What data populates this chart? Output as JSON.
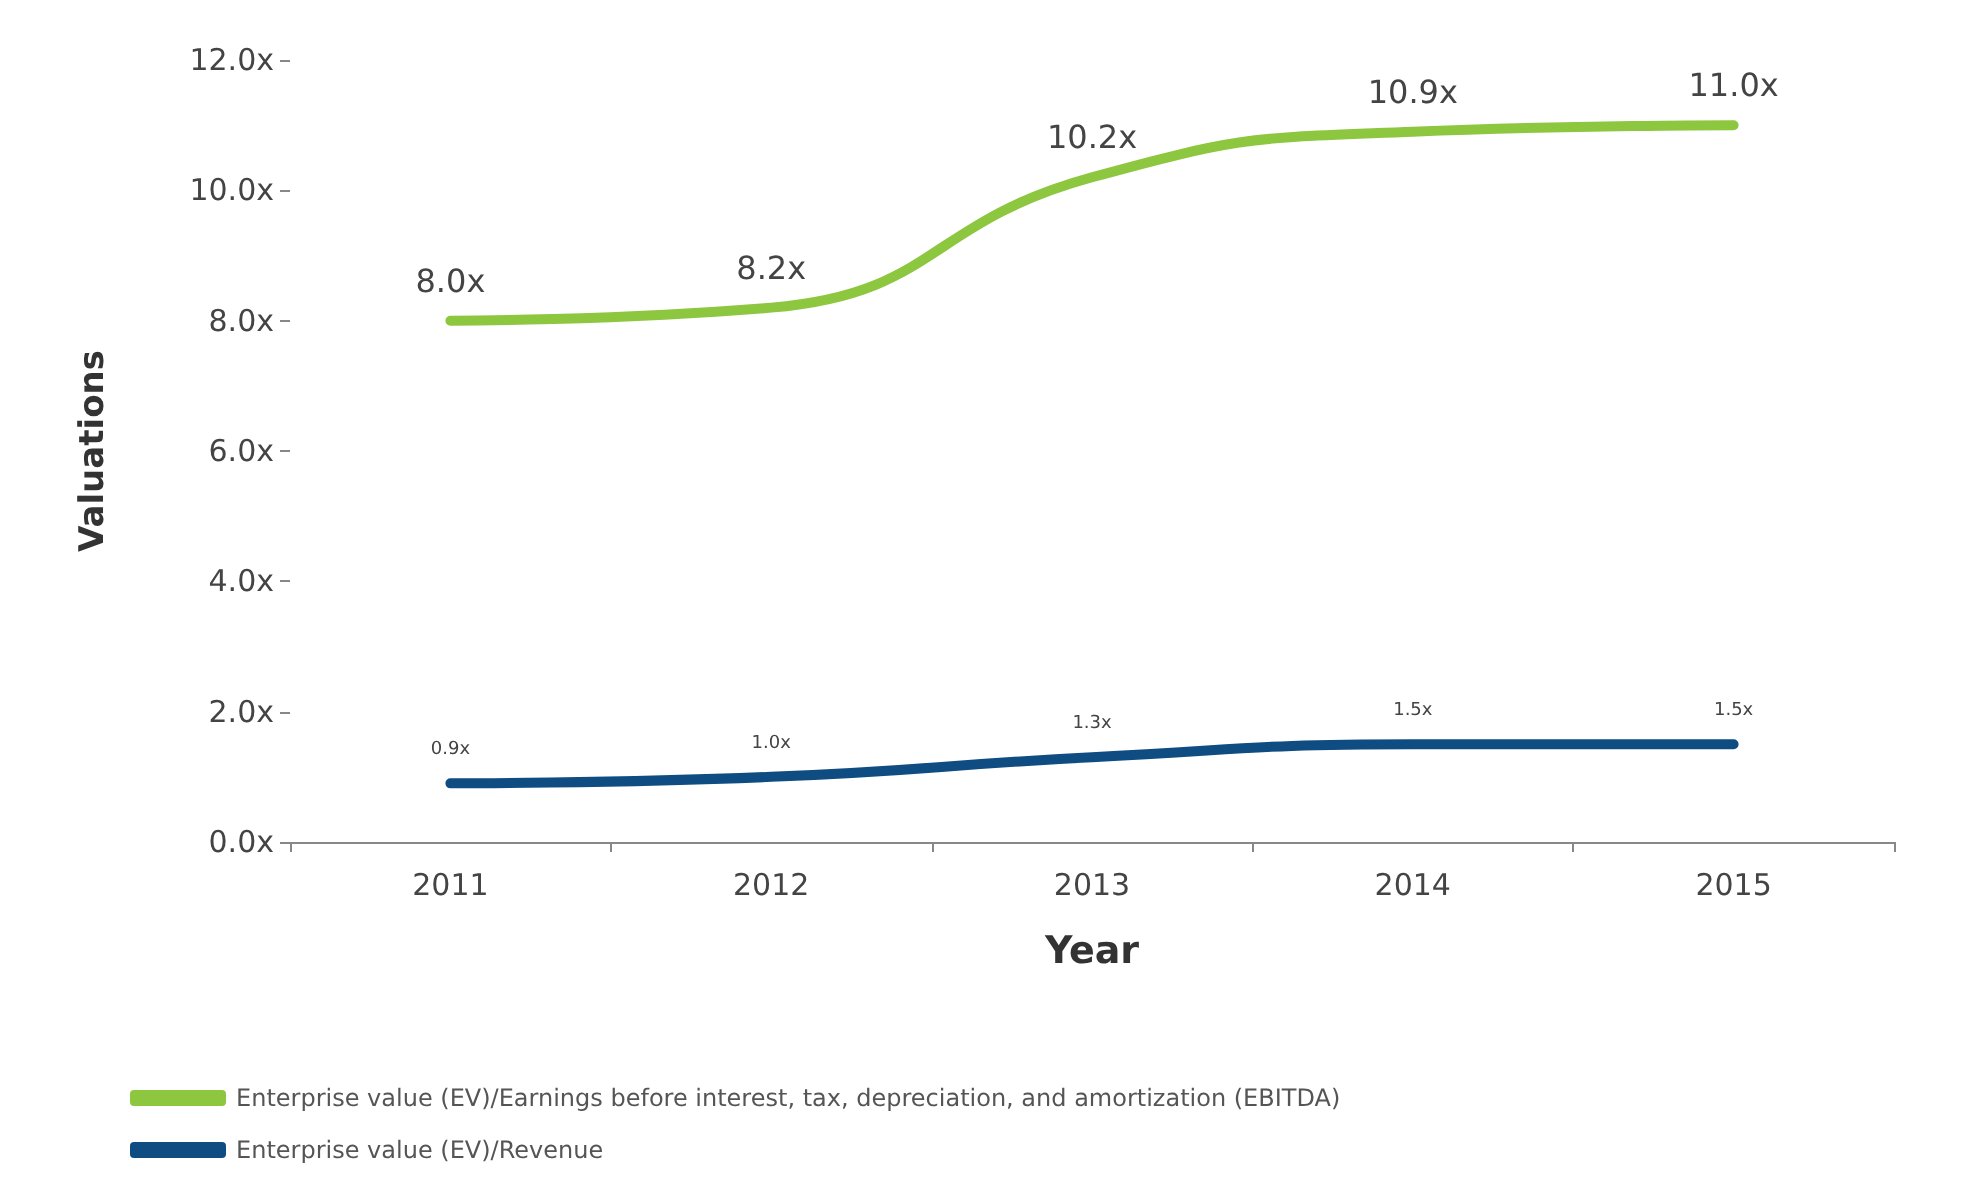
{
  "chart_data": {
    "type": "line",
    "xlabel": "Year",
    "ylabel": "Valuations",
    "categories": [
      "2011",
      "2012",
      "2013",
      "2014",
      "2015"
    ],
    "series": [
      {
        "name": "Enterprise value (EV)/Earnings before interest, tax, depreciation, and amortization (EBITDA)",
        "color": "#8dc63f",
        "values": [
          8.0,
          8.2,
          10.2,
          10.9,
          11.0
        ],
        "value_labels": [
          "8.0x",
          "8.2x",
          "10.2x",
          "10.9x",
          "11.0x"
        ]
      },
      {
        "name": "Enterprise value (EV)/Revenue",
        "color": "#0f4c81",
        "values": [
          0.9,
          1.0,
          1.3,
          1.5,
          1.5
        ],
        "value_labels": [
          "0.9x",
          "1.0x",
          "1.3x",
          "1.5x",
          "1.5x"
        ]
      }
    ],
    "ylim": [
      0,
      12
    ],
    "yticks": [
      {
        "value": 0,
        "label": "0.0x"
      },
      {
        "value": 2,
        "label": "2.0x"
      },
      {
        "value": 4,
        "label": "4.0x"
      },
      {
        "value": 6,
        "label": "6.0x"
      },
      {
        "value": 8,
        "label": "8.0x"
      },
      {
        "value": 10,
        "label": "10.0x"
      },
      {
        "value": 12,
        "label": "12.0x"
      }
    ],
    "grid": false,
    "legend": "bottom left",
    "marker": "none",
    "line_style": "solid"
  }
}
